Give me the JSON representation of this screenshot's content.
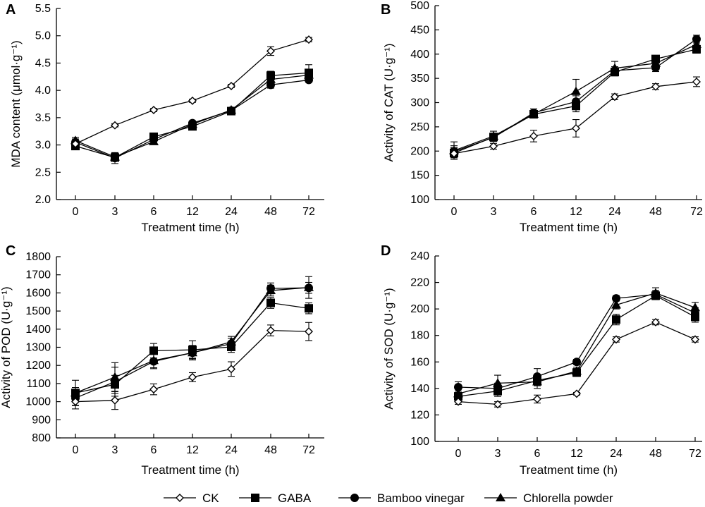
{
  "legend": [
    {
      "series": "CK",
      "marker": "diamond-open"
    },
    {
      "series": "GABA",
      "marker": "square-filled"
    },
    {
      "series": "Bamboo vinegar",
      "marker": "circle-filled"
    },
    {
      "series": "Chlorella powder",
      "marker": "triangle-filled"
    }
  ],
  "chart_data": [
    {
      "type": "line",
      "panel": "A",
      "xlabel": "Treatment time (h)",
      "ylabel": "MDA content (μmol·g⁻¹)",
      "categories": [
        "0",
        "3",
        "6",
        "12",
        "24",
        "48",
        "72"
      ],
      "ylim": [
        2.0,
        5.5
      ],
      "yticks": [
        "2.0",
        "2.5",
        "3.0",
        "3.5",
        "4.0",
        "4.5",
        "5.0",
        "5.5"
      ],
      "series": [
        {
          "name": "CK",
          "values": [
            3.02,
            3.36,
            3.64,
            3.81,
            4.08,
            4.72,
            4.93
          ],
          "errors": [
            0.04,
            0.03,
            0.03,
            0.03,
            0.03,
            0.08,
            0.04
          ]
        },
        {
          "name": "GABA",
          "values": [
            2.98,
            2.77,
            3.15,
            3.34,
            3.62,
            4.27,
            4.32
          ],
          "errors": [
            0.05,
            0.06,
            0.05,
            0.04,
            0.04,
            0.08,
            0.15
          ]
        },
        {
          "name": "Bamboo vinegar",
          "values": [
            3.05,
            2.76,
            3.1,
            3.4,
            3.63,
            4.1,
            4.19
          ],
          "errors": [
            0.06,
            0.1,
            0.04,
            0.04,
            0.03,
            0.06,
            0.04
          ]
        },
        {
          "name": "Chlorella powder",
          "values": [
            3.08,
            2.78,
            3.06,
            3.38,
            3.64,
            4.2,
            4.28
          ],
          "errors": [
            0.06,
            0.07,
            0.05,
            0.04,
            0.03,
            0.07,
            0.07
          ]
        }
      ]
    },
    {
      "type": "line",
      "panel": "B",
      "xlabel": "Treatment time (h)",
      "ylabel": "Activity of CAT (U·g⁻¹)",
      "categories": [
        "0",
        "3",
        "6",
        "12",
        "24",
        "48",
        "72"
      ],
      "ylim": [
        100,
        500
      ],
      "yticks": [
        "100",
        "150",
        "200",
        "250",
        "300",
        "350",
        "400",
        "450",
        "500"
      ],
      "series": [
        {
          "name": "CK",
          "values": [
            195,
            210,
            231,
            247,
            312,
            333,
            343
          ],
          "errors": [
            12,
            6,
            12,
            18,
            6,
            6,
            10
          ]
        },
        {
          "name": "GABA",
          "values": [
            196,
            229,
            276,
            293,
            363,
            390,
            410
          ],
          "errors": [
            10,
            8,
            8,
            12,
            8,
            6,
            8
          ]
        },
        {
          "name": "Bamboo vinegar",
          "values": [
            199,
            228,
            279,
            302,
            366,
            372,
            431
          ],
          "errors": [
            12,
            8,
            8,
            12,
            8,
            8,
            8
          ]
        },
        {
          "name": "Chlorella powder",
          "values": [
            201,
            231,
            276,
            323,
            371,
            381,
            420
          ],
          "errors": [
            18,
            10,
            8,
            25,
            14,
            8,
            10
          ]
        }
      ]
    },
    {
      "type": "line",
      "panel": "C",
      "xlabel": "Treatment time (h)",
      "ylabel": "Activity of POD (U·g⁻¹)",
      "categories": [
        "0",
        "3",
        "6",
        "12",
        "24",
        "48",
        "72"
      ],
      "ylim": [
        800,
        1800
      ],
      "yticks": [
        "800",
        "900",
        "1000",
        "1100",
        "1200",
        "1300",
        "1400",
        "1500",
        "1600",
        "1700",
        "1800"
      ],
      "series": [
        {
          "name": "CK",
          "values": [
            1000,
            1007,
            1068,
            1135,
            1180,
            1393,
            1387
          ],
          "errors": [
            40,
            50,
            30,
            25,
            40,
            30,
            50
          ]
        },
        {
          "name": "GABA",
          "values": [
            1048,
            1095,
            1281,
            1286,
            1302,
            1545,
            1515
          ],
          "errors": [
            70,
            50,
            40,
            50,
            30,
            30,
            30
          ]
        },
        {
          "name": "Bamboo vinegar",
          "values": [
            1020,
            1110,
            1222,
            1270,
            1320,
            1625,
            1628
          ],
          "errors": [
            40,
            80,
            40,
            40,
            30,
            30,
            30
          ]
        },
        {
          "name": "Chlorella powder",
          "values": [
            1048,
            1135,
            1227,
            1270,
            1330,
            1613,
            1630
          ],
          "errors": [
            30,
            80,
            40,
            30,
            30,
            30,
            60
          ]
        }
      ]
    },
    {
      "type": "line",
      "panel": "D",
      "xlabel": "Treatment time (h)",
      "ylabel": "Activity of SOD (U·g⁻¹)",
      "categories": [
        "0",
        "3",
        "6",
        "12",
        "24",
        "48",
        "72"
      ],
      "ylim": [
        100,
        240
      ],
      "yticks": [
        "100",
        "120",
        "140",
        "160",
        "180",
        "200",
        "220",
        "240"
      ],
      "series": [
        {
          "name": "CK",
          "values": [
            130,
            128,
            132,
            136,
            177,
            190,
            177
          ],
          "errors": [
            2,
            2,
            3,
            1,
            2,
            2,
            2
          ]
        },
        {
          "name": "GABA",
          "values": [
            134,
            138,
            146,
            152,
            192,
            210,
            194
          ],
          "errors": [
            4,
            4,
            4,
            3,
            4,
            3,
            4
          ]
        },
        {
          "name": "Bamboo vinegar",
          "values": [
            141,
            140,
            149,
            160,
            208,
            211,
            197
          ],
          "errors": [
            4,
            4,
            6,
            2,
            2,
            3,
            4
          ]
        },
        {
          "name": "Chlorella powder",
          "values": [
            136,
            144,
            145,
            153,
            203,
            212,
            201
          ],
          "errors": [
            6,
            6,
            5,
            3,
            3,
            4,
            4
          ]
        }
      ]
    }
  ],
  "panels": [
    {
      "label": "A"
    },
    {
      "label": "B"
    },
    {
      "label": "C"
    },
    {
      "label": "D"
    }
  ]
}
